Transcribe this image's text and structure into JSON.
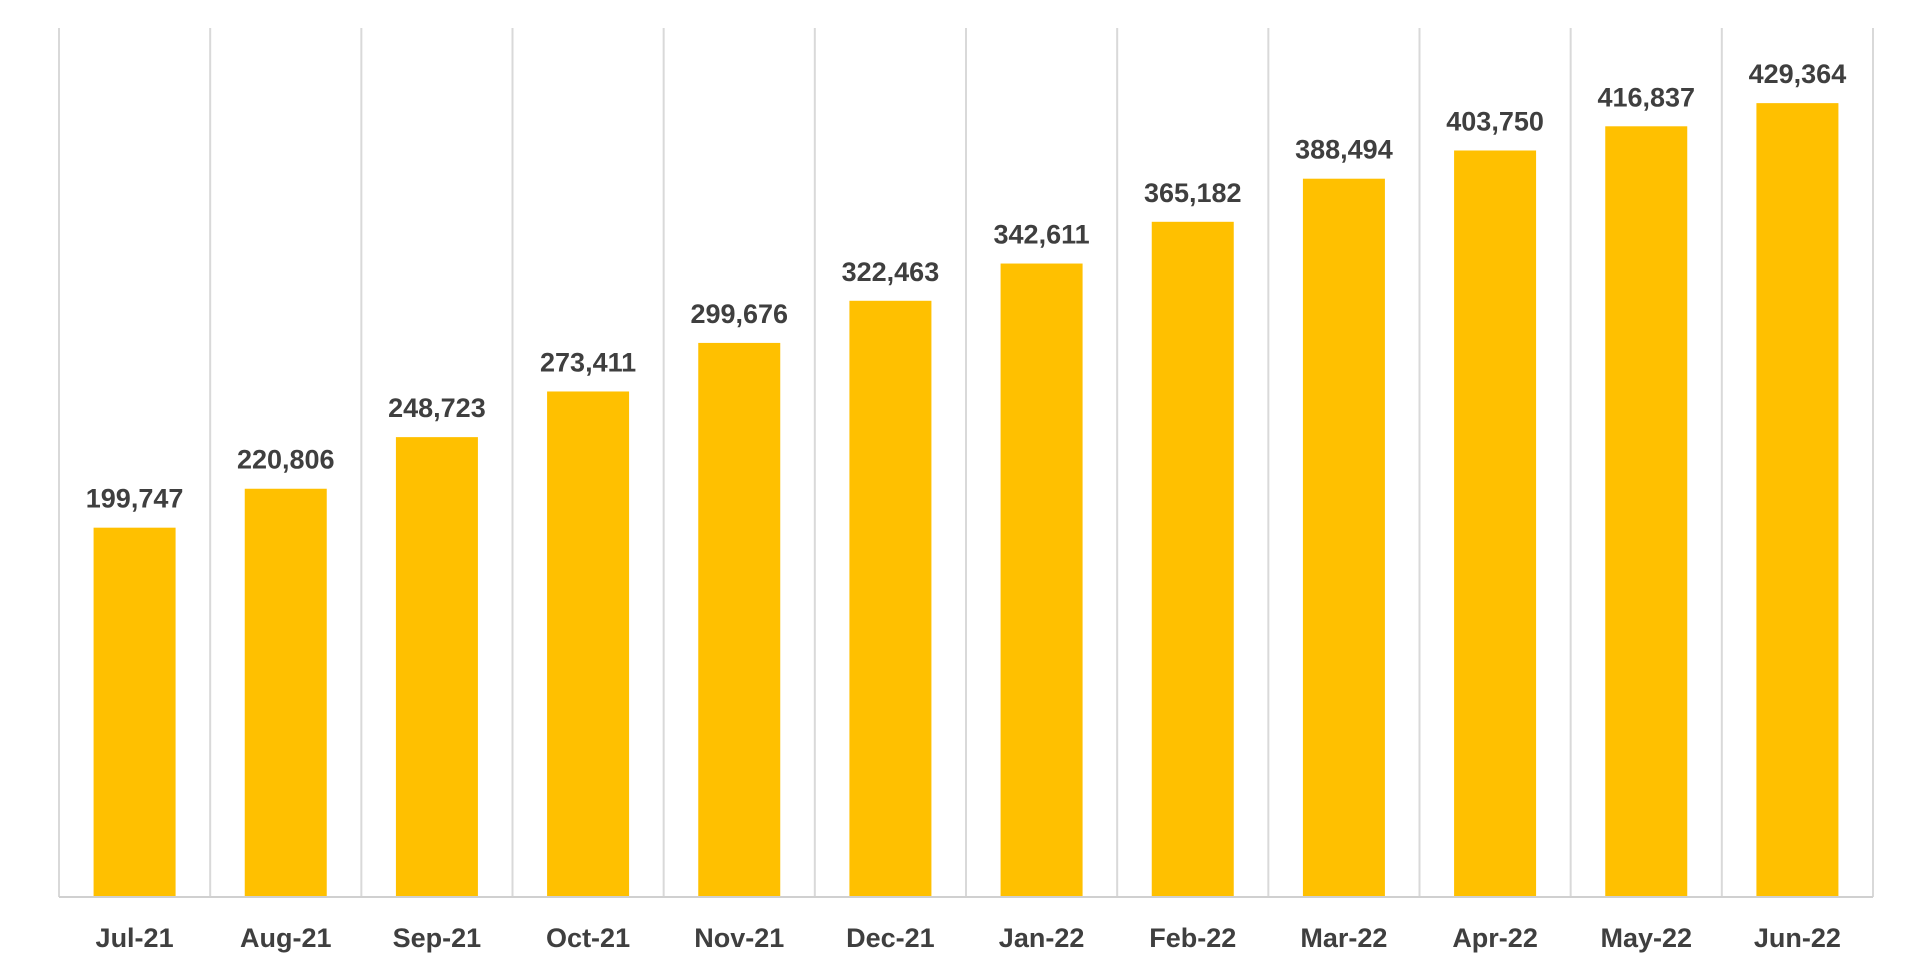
{
  "chart_data": {
    "type": "bar",
    "title": "",
    "xlabel": "",
    "ylabel": "",
    "categories": [
      "Jul-21",
      "Aug-21",
      "Sep-21",
      "Oct-21",
      "Nov-21",
      "Dec-21",
      "Jan-22",
      "Feb-22",
      "Mar-22",
      "Apr-22",
      "May-22",
      "Jun-22"
    ],
    "values": [
      199747,
      220806,
      248723,
      273411,
      299676,
      322463,
      342611,
      365182,
      388494,
      403750,
      416837,
      429364
    ],
    "value_labels": [
      "199,747",
      "220,806",
      "248,723",
      "273,411",
      "299,676",
      "322,463",
      "342,611",
      "365,182",
      "388,494",
      "403,750",
      "416,837",
      "429,364"
    ],
    "ylim": [
      0,
      470000
    ],
    "grid": "vertical",
    "bar_color": "#FFC000",
    "gridline_color": "#D9D9D9",
    "label_color": "#3F3F3F"
  }
}
